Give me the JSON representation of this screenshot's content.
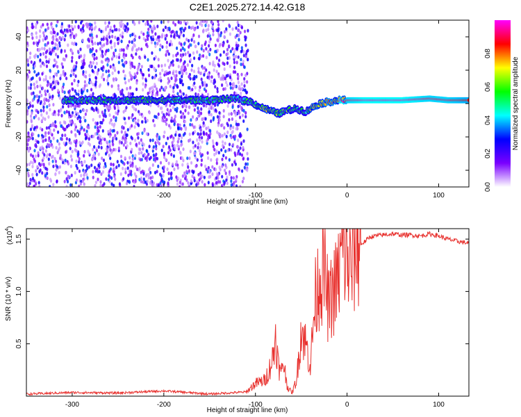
{
  "figure": {
    "title": "C2E1.2025.272.14.42.G18"
  },
  "chart_data": [
    {
      "type": "heatmap",
      "xlabel": "Height of straight line (km)",
      "ylabel": "Frequency (Hz)",
      "xlim": [
        -350,
        133
      ],
      "ylim": [
        -50,
        50
      ],
      "xticks": [
        -300,
        -200,
        -100,
        0,
        100
      ],
      "yticks": [
        -40,
        -20,
        0,
        20,
        40
      ],
      "colorbar": {
        "label": "Normalized spectral amplitude",
        "range": [
          0,
          1
        ],
        "ticks": [
          0.0,
          0.2,
          0.4,
          0.6,
          0.8
        ],
        "tick_labels": [
          "0.0",
          "0.2",
          "0.4",
          "0.6",
          "0.8"
        ],
        "colormap": [
          "#ffffff",
          "#7a00ff",
          "#0000ff",
          "#00ffff",
          "#00ff00",
          "#ffff00",
          "#ff0000",
          "#ff00ff"
        ]
      },
      "ridge": {
        "x": [
          -310,
          -250,
          -200,
          -150,
          -120,
          -105,
          -95,
          -85,
          -75,
          -65,
          -55,
          -45,
          -40,
          -30,
          -20,
          -10,
          0,
          20,
          60,
          90,
          110,
          133
        ],
        "y": [
          2,
          2,
          2,
          2,
          3,
          1,
          -2,
          -4,
          -6,
          -4,
          -3,
          -5,
          -3,
          0,
          1,
          2,
          2,
          2,
          2,
          3,
          2,
          2
        ],
        "amplitude": [
          0.6,
          0.55,
          0.6,
          0.55,
          0.55,
          0.6,
          0.65,
          0.7,
          0.65,
          0.65,
          0.6,
          0.55,
          0.7,
          0.75,
          0.8,
          0.85,
          0.9,
          0.95,
          0.95,
          0.9,
          0.9,
          0.85
        ]
      },
      "noise_region": {
        "x": [
          -350,
          -108
        ],
        "y": [
          -50,
          50
        ],
        "amplitude_range": [
          0.05,
          0.35
        ]
      }
    },
    {
      "type": "line",
      "xlabel": "Height of straight line (km)",
      "ylabel": "SNR (10 * v/v)",
      "scale_label": "(x10",
      "scale_exponent": "4",
      "xlim": [
        -350,
        133
      ],
      "ylim": [
        0,
        16000
      ],
      "xticks": [
        -300,
        -200,
        -100,
        0,
        100
      ],
      "yticks": [
        5000,
        10000,
        15000
      ],
      "ytick_labels": [
        "0.5",
        "1.0",
        "1.5"
      ],
      "series": [
        {
          "color": "#e8312e",
          "x": [
            -350,
            -300,
            -250,
            -200,
            -150,
            -110,
            -100,
            -90,
            -85,
            -80,
            -78,
            -75,
            -72,
            -70,
            -65,
            -60,
            -55,
            -50,
            -45,
            -40,
            -35,
            -30,
            -25,
            -20,
            -15,
            -10,
            -5,
            0,
            5,
            10,
            15,
            20,
            25,
            30,
            40,
            50,
            60,
            70,
            80,
            90,
            100,
            110,
            120,
            133
          ],
          "y": [
            200,
            350,
            300,
            500,
            200,
            400,
            1200,
            1500,
            2500,
            4000,
            6000,
            3000,
            2000,
            3500,
            900,
            300,
            1600,
            6500,
            5000,
            3000,
            9000,
            11500,
            12000,
            8500,
            10000,
            11000,
            14000,
            13000,
            12000,
            14500,
            14500,
            14800,
            15200,
            15300,
            15400,
            15500,
            15400,
            15400,
            15300,
            15500,
            15300,
            15000,
            14800,
            14600
          ]
        }
      ]
    }
  ]
}
